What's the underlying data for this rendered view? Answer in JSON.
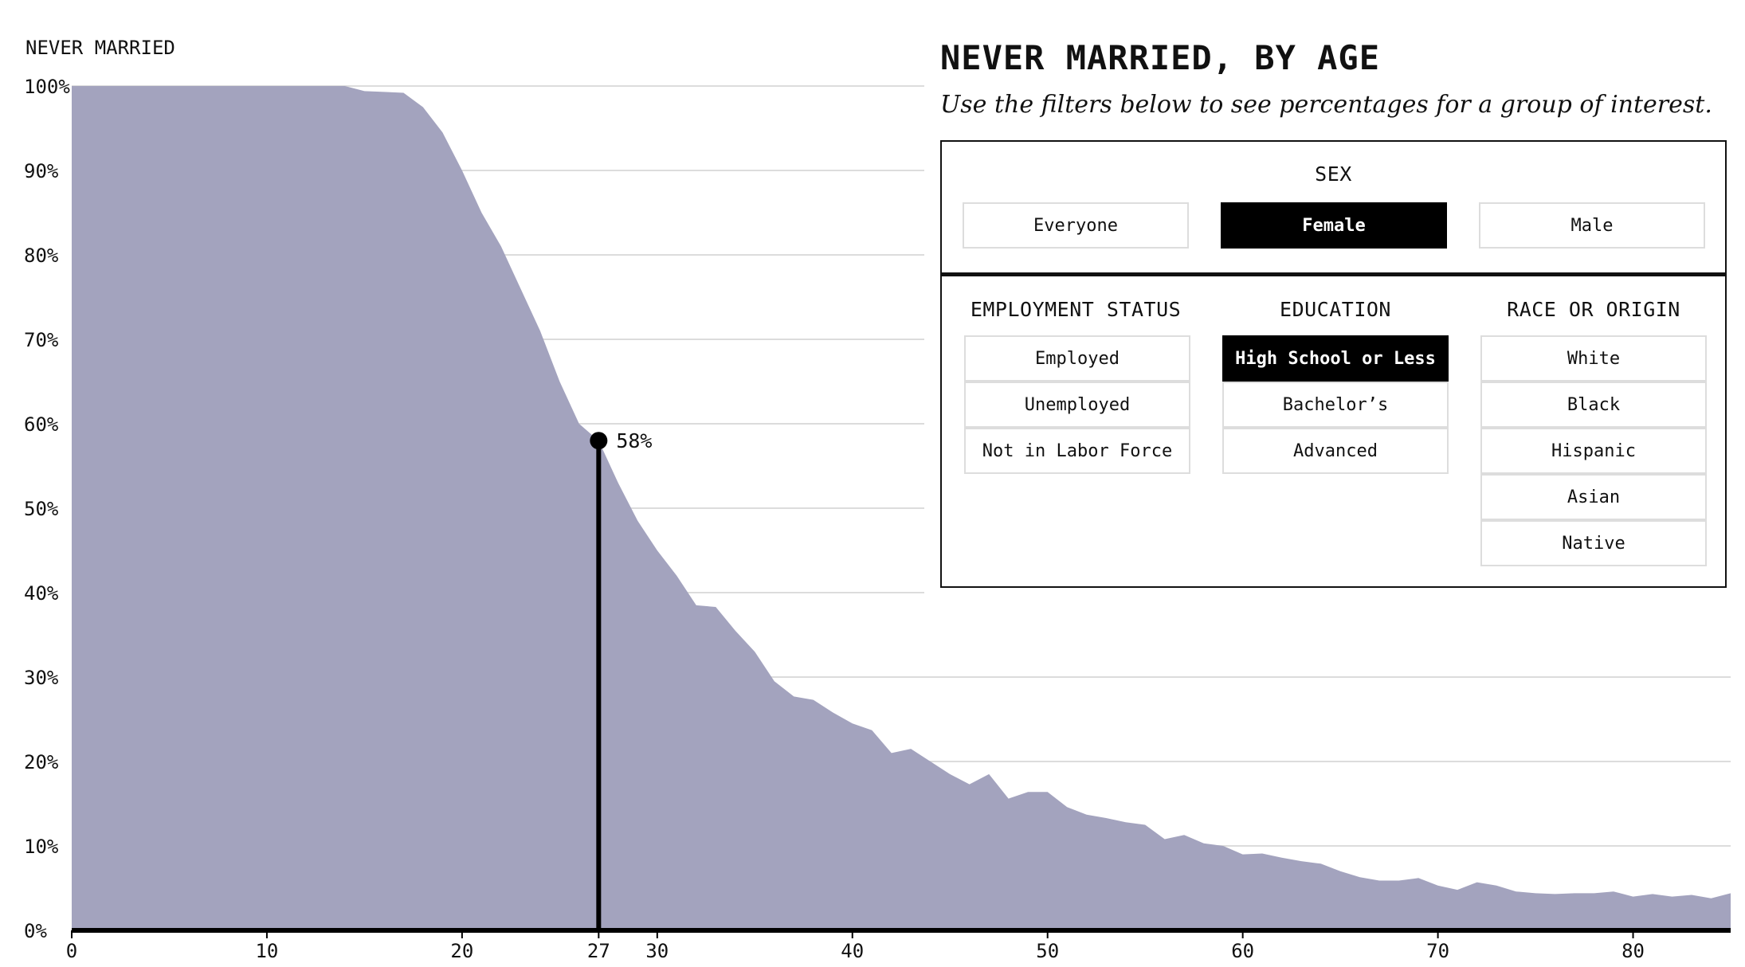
{
  "chart_data": {
    "type": "area",
    "ylabel": "NEVER MARRIED",
    "ylim": [
      0,
      100
    ],
    "yticks": [
      "0%",
      "10%",
      "20%",
      "30%",
      "40%",
      "50%",
      "60%",
      "70%",
      "80%",
      "90%",
      "100%"
    ],
    "xlim": [
      0,
      85
    ],
    "xticks": [
      "0",
      "10",
      "20",
      "27",
      "30",
      "40",
      "50",
      "60",
      "70",
      "80"
    ],
    "fill_color": "#a3a3be",
    "x": [
      0,
      1,
      2,
      3,
      4,
      5,
      6,
      7,
      8,
      9,
      10,
      11,
      12,
      13,
      14,
      15,
      16,
      17,
      18,
      19,
      20,
      21,
      22,
      23,
      24,
      25,
      26,
      27,
      28,
      29,
      30,
      31,
      32,
      33,
      34,
      35,
      36,
      37,
      38,
      39,
      40,
      41,
      42,
      43,
      44,
      45,
      46,
      47,
      48,
      49,
      50,
      51,
      52,
      53,
      54,
      55,
      56,
      57,
      58,
      59,
      60,
      61,
      62,
      63,
      64,
      65,
      66,
      67,
      68,
      69,
      70,
      71,
      72,
      73,
      74,
      75,
      76,
      77,
      78,
      79,
      80,
      81,
      82,
      83,
      84,
      85
    ],
    "values": [
      100,
      100,
      100,
      100,
      100,
      100,
      100,
      100,
      100,
      100,
      100,
      100,
      100,
      100,
      100,
      99.4,
      99.3,
      99.2,
      97.5,
      94.5,
      90,
      85,
      81,
      76,
      71,
      65,
      60,
      58,
      53,
      48.5,
      45,
      42,
      38.5,
      38.3,
      35.5,
      33,
      29.5,
      27.7,
      27.3,
      25.8,
      24.5,
      23.7,
      21,
      21.5,
      20,
      18.5,
      17.3,
      18.5,
      15.6,
      16.4,
      16.4,
      14.6,
      13.7,
      13.3,
      12.8,
      12.5,
      10.8,
      11.3,
      10.3,
      10,
      9,
      9.1,
      8.6,
      8.2,
      7.9,
      7,
      6.3,
      5.9,
      5.9,
      6.2,
      5.3,
      4.8,
      5.7,
      5.3,
      4.6,
      4.4,
      4.3,
      4.4,
      4.4,
      4.6,
      4.0,
      4.3,
      4.0,
      4.2,
      3.8,
      4.4
    ],
    "highlight": {
      "x": 27,
      "y": 58,
      "label": "58%"
    }
  },
  "panel": {
    "title": "NEVER MARRIED, BY AGE",
    "subtitle": "Use the filters below to see percentages for a group of interest.",
    "sex": {
      "heading": "SEX",
      "options": [
        "Everyone",
        "Female",
        "Male"
      ],
      "selected": "Female"
    },
    "employment": {
      "heading": "EMPLOYMENT STATUS",
      "options": [
        "Employed",
        "Unemployed",
        "Not in Labor Force"
      ]
    },
    "education": {
      "heading": "EDUCATION",
      "options": [
        "High School or Less",
        "Bachelor’s",
        "Advanced"
      ],
      "selected": "High School or Less"
    },
    "race": {
      "heading": "RACE OR ORIGIN",
      "options": [
        "White",
        "Black",
        "Hispanic",
        "Asian",
        "Native"
      ]
    }
  }
}
